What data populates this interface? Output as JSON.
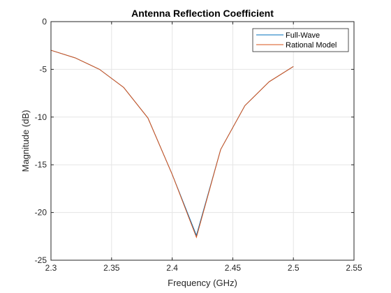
{
  "chart_data": {
    "type": "line",
    "title": "Antenna Reflection Coefficient",
    "xlabel": "Frequency (GHz)",
    "ylabel": "Magnitude (dB)",
    "xlim": [
      2.3,
      2.55
    ],
    "ylim": [
      -25,
      0
    ],
    "xticks": [
      "2.3",
      "2.35",
      "2.4",
      "2.45",
      "2.5",
      "2.55"
    ],
    "yticks": [
      "0",
      "-5",
      "-10",
      "-15",
      "-20",
      "-25"
    ],
    "grid": true,
    "legend_position": "top-right",
    "x": [
      2.3,
      2.32,
      2.34,
      2.36,
      2.38,
      2.4,
      2.42,
      2.44,
      2.46,
      2.48,
      2.5
    ],
    "series": [
      {
        "name": "Full-Wave",
        "color": "#0072BD",
        "values": [
          -3.0,
          -3.8,
          -5.0,
          -6.9,
          -10.1,
          -16.0,
          -22.4,
          -13.4,
          -8.8,
          -6.3,
          -4.7
        ]
      },
      {
        "name": "Rational Model",
        "color": "#D95319",
        "values": [
          -3.0,
          -3.8,
          -5.0,
          -6.9,
          -10.1,
          -16.0,
          -22.6,
          -13.4,
          -8.8,
          -6.3,
          -4.7
        ]
      }
    ]
  }
}
